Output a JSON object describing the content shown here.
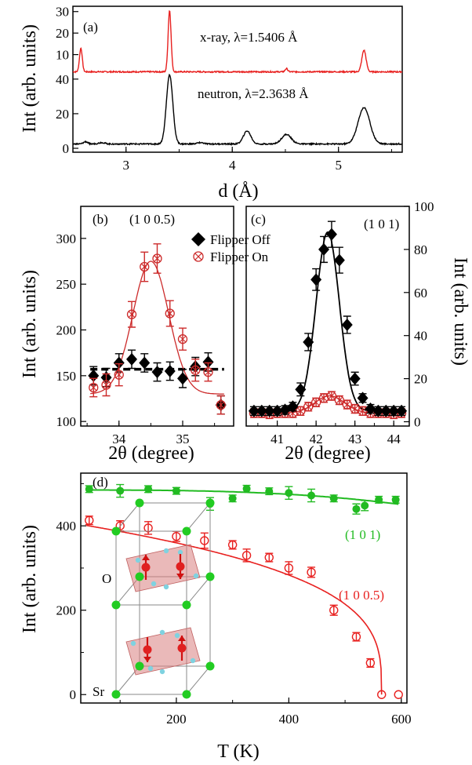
{
  "chart_data": [
    {
      "id": "a",
      "type": "line",
      "panel_label": "(a)",
      "xlabel": "d (Å)",
      "ylabel": "Int (arb. units)",
      "xlim": [
        2.5,
        5.6
      ],
      "x_ticks": [
        3,
        4,
        5
      ],
      "x_tick_labels": [
        "3",
        "4",
        "5"
      ],
      "series": [
        {
          "name": "x-ray, λ=1.5406 Å",
          "color": "#e8201f",
          "ylim": [
            0,
            31
          ],
          "y_ticks": [
            10,
            20,
            30
          ],
          "y_tick_labels": [
            "10",
            "20",
            "30"
          ],
          "baseline": 2,
          "noise": 0.3,
          "peaks": [
            {
              "x": 2.575,
              "h": 11,
              "w": 0.013
            },
            {
              "x": 3.41,
              "h": 28.5,
              "w": 0.014
            },
            {
              "x": 4.51,
              "h": 1.5,
              "w": 0.012
            },
            {
              "x": 5.24,
              "h": 10,
              "w": 0.02
            }
          ]
        },
        {
          "name": "neutron, λ=2.3638 Å",
          "color": "#000000",
          "ylim": [
            0,
            44
          ],
          "y_ticks": [
            0,
            20,
            40
          ],
          "y_tick_labels": [
            "0",
            "20",
            "40"
          ],
          "baseline": 2.5,
          "noise": 0.35,
          "peaks": [
            {
              "x": 2.62,
              "h": 1.3,
              "w": 0.02
            },
            {
              "x": 2.77,
              "h": 0.8,
              "w": 0.03
            },
            {
              "x": 3.41,
              "h": 40,
              "w": 0.03
            },
            {
              "x": 3.7,
              "h": 0.8,
              "w": 0.03
            },
            {
              "x": 4.14,
              "h": 7.5,
              "w": 0.035
            },
            {
              "x": 4.51,
              "h": 5.5,
              "w": 0.045
            },
            {
              "x": 5.24,
              "h": 21,
              "w": 0.055
            }
          ]
        }
      ]
    },
    {
      "id": "b",
      "type": "scatter",
      "panel_label": "(b)",
      "annotation": "(1 0 0.5)",
      "xlabel": "2θ (degree)",
      "ylabel": "Int (arb. units)",
      "xlim": [
        33.4,
        35.8
      ],
      "ylim": [
        95,
        335
      ],
      "x_ticks": [
        34,
        35
      ],
      "x_tick_labels": [
        "34",
        "35"
      ],
      "y_ticks": [
        100,
        150,
        200,
        250,
        300
      ],
      "y_tick_labels": [
        "100",
        "150",
        "200",
        "250",
        "300"
      ],
      "dashed_level": 157,
      "fit": {
        "baseline": 130,
        "amplitude": 145,
        "center": 34.5,
        "sigma": 0.28
      },
      "series": [
        {
          "name": "Flipper Off",
          "color": "#000000",
          "marker": "filled-diamond",
          "x": [
            33.6,
            33.8,
            34.0,
            34.2,
            34.4,
            34.6,
            34.8,
            35.0,
            35.2,
            35.4,
            35.6
          ],
          "y": [
            150,
            148,
            164,
            168,
            164,
            154,
            155,
            147,
            160,
            165,
            118
          ],
          "err": [
            10,
            10,
            10,
            10,
            10,
            10,
            10,
            10,
            10,
            10,
            10
          ]
        },
        {
          "name": "Flipper On",
          "color": "#cc2a2a",
          "marker": "open-circle-cross",
          "x": [
            33.6,
            33.8,
            34.0,
            34.2,
            34.4,
            34.6,
            34.8,
            35.0,
            35.2,
            35.4,
            35.6
          ],
          "y": [
            137,
            140,
            151,
            217,
            269,
            278,
            218,
            190,
            156,
            154,
            118
          ],
          "err": [
            10,
            12,
            12,
            14,
            16,
            16,
            14,
            12,
            12,
            10,
            10
          ]
        }
      ]
    },
    {
      "id": "c",
      "type": "scatter",
      "panel_label": "(c)",
      "annotation": "(1 0 1)",
      "xlabel": "2θ (degree)",
      "ylabel": "Int (arb. units)",
      "xlim": [
        40.2,
        44.4
      ],
      "ylim": [
        -2,
        100
      ],
      "x_ticks": [
        41,
        42,
        43,
        44
      ],
      "x_tick_labels": [
        "41",
        "42",
        "43",
        "44"
      ],
      "y_ticks": [
        0,
        20,
        40,
        60,
        80,
        100
      ],
      "y_tick_labels": [
        "0",
        "20",
        "40",
        "60",
        "80",
        "100"
      ],
      "fits": [
        {
          "color": "#000000",
          "baseline": 5,
          "amplitude": 83,
          "center": 42.3,
          "sigma": 0.3
        },
        {
          "color": "#cc2a2a",
          "baseline": 4,
          "amplitude": 8,
          "center": 42.35,
          "sigma": 0.38
        }
      ],
      "series": [
        {
          "name": "Flipper Off",
          "color": "#000000",
          "marker": "filled-diamond",
          "x": [
            40.4,
            40.6,
            40.8,
            41.0,
            41.2,
            41.4,
            41.6,
            41.8,
            42.0,
            42.2,
            42.4,
            42.6,
            42.8,
            43.0,
            43.2,
            43.4,
            43.6,
            43.8,
            44.0,
            44.2
          ],
          "y": [
            5,
            5,
            5,
            5,
            5.5,
            7,
            15,
            37,
            66,
            80,
            87,
            75,
            45,
            20,
            11,
            6,
            5,
            5,
            5,
            5
          ],
          "err": [
            2,
            2,
            2,
            2,
            2,
            2,
            3,
            4,
            5,
            6,
            6,
            6,
            4,
            3,
            2,
            2,
            2,
            2,
            2,
            2
          ]
        },
        {
          "name": "Flipper On",
          "color": "#cc2a2a",
          "marker": "open-circle-cross",
          "x": [
            40.4,
            40.6,
            40.8,
            41.0,
            41.2,
            41.4,
            41.6,
            41.8,
            42.0,
            42.2,
            42.4,
            42.6,
            42.8,
            43.0,
            43.2,
            43.4,
            43.6,
            43.8,
            44.0,
            44.2
          ],
          "y": [
            4,
            4,
            3.5,
            4,
            4,
            4,
            5,
            7,
            9,
            11,
            12,
            10,
            8,
            6,
            5,
            4,
            4,
            4,
            3.5,
            4
          ],
          "err": [
            2,
            2,
            2,
            2,
            2,
            2,
            2,
            2,
            2,
            2,
            2,
            2,
            2,
            2,
            2,
            2,
            2,
            2,
            2,
            2
          ]
        }
      ]
    },
    {
      "id": "d",
      "type": "scatter",
      "panel_label": "(d)",
      "xlabel": "T (K)",
      "ylabel": "Int (arb. units)",
      "xlim": [
        30,
        610
      ],
      "ylim": [
        -20,
        525
      ],
      "x_ticks": [
        200,
        400,
        600
      ],
      "x_tick_labels": [
        "200",
        "400",
        "600"
      ],
      "y_ticks": [
        0,
        200,
        400
      ],
      "y_tick_labels": [
        "0",
        "200",
        "400"
      ],
      "series": [
        {
          "name": "(1 0 1)",
          "color": "#22bb22",
          "marker": "filled-circle",
          "x": [
            45,
            100,
            150,
            200,
            260,
            300,
            325,
            365,
            400,
            440,
            480,
            520,
            535,
            560,
            590
          ],
          "y": [
            487,
            483,
            487,
            483,
            452,
            465,
            488,
            482,
            478,
            472,
            465,
            440,
            448,
            462,
            462
          ],
          "err": [
            8,
            15,
            8,
            8,
            15,
            8,
            8,
            8,
            15,
            15,
            8,
            12,
            12,
            8,
            8
          ],
          "fit": {
            "type": "power-law",
            "A": 470,
            "B": 10,
            "Tc": 560,
            "n": 3,
            "base": 460
          }
        },
        {
          "name": "(1 0 0.5)",
          "color": "#e8201f",
          "marker": "open-circle",
          "x": [
            45,
            100,
            150,
            200,
            250,
            300,
            325,
            365,
            400,
            440,
            480,
            520,
            545,
            565,
            595
          ],
          "y": [
            413,
            400,
            395,
            375,
            365,
            355,
            330,
            325,
            300,
            290,
            200,
            137,
            75,
            0,
            0
          ],
          "err": [
            10,
            12,
            15,
            12,
            18,
            10,
            15,
            10,
            15,
            12,
            12,
            10,
            10,
            0,
            0
          ],
          "fit": {
            "type": "order-parameter",
            "A": 410,
            "Tc": 565,
            "beta": 0.3
          }
        }
      ],
      "inset_labels": [
        "O",
        "Sr"
      ]
    }
  ]
}
